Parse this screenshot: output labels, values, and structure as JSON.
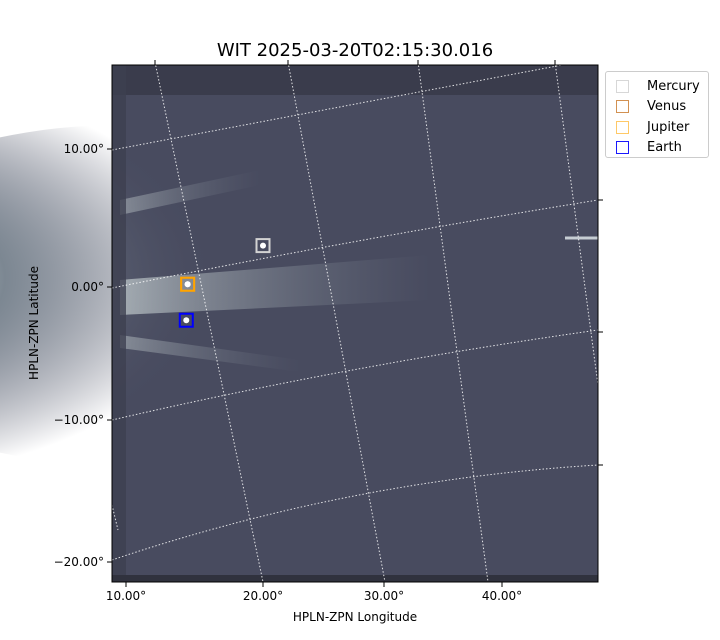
{
  "chart_data": {
    "type": "image",
    "title": "WIT 2025-03-20T02:15:30.016",
    "xlabel": "HPLN-ZPN Longitude",
    "ylabel": "HPLN-ZPN Latitude",
    "xticks": [
      "10.00°",
      "20.00°",
      "30.00°",
      "40.00°"
    ],
    "yticks": [
      "10.00°",
      "0.00°",
      "−10.00°",
      "−20.00°"
    ],
    "grid": true,
    "legend_placement": "outside-top-right",
    "markers": [
      {
        "name": "Mercury",
        "lon": 20.0,
        "lat": 3.0,
        "color": "#d3d3d3"
      },
      {
        "name": "Venus",
        "lon": 14.5,
        "lat": 0.2,
        "color": "#cd853f"
      },
      {
        "name": "Jupiter",
        "lon": 14.5,
        "lat": 0.2,
        "color": "#ffa500"
      },
      {
        "name": "Earth",
        "lon": 14.4,
        "lat": -2.5,
        "color": "#0000ff"
      }
    ]
  }
}
